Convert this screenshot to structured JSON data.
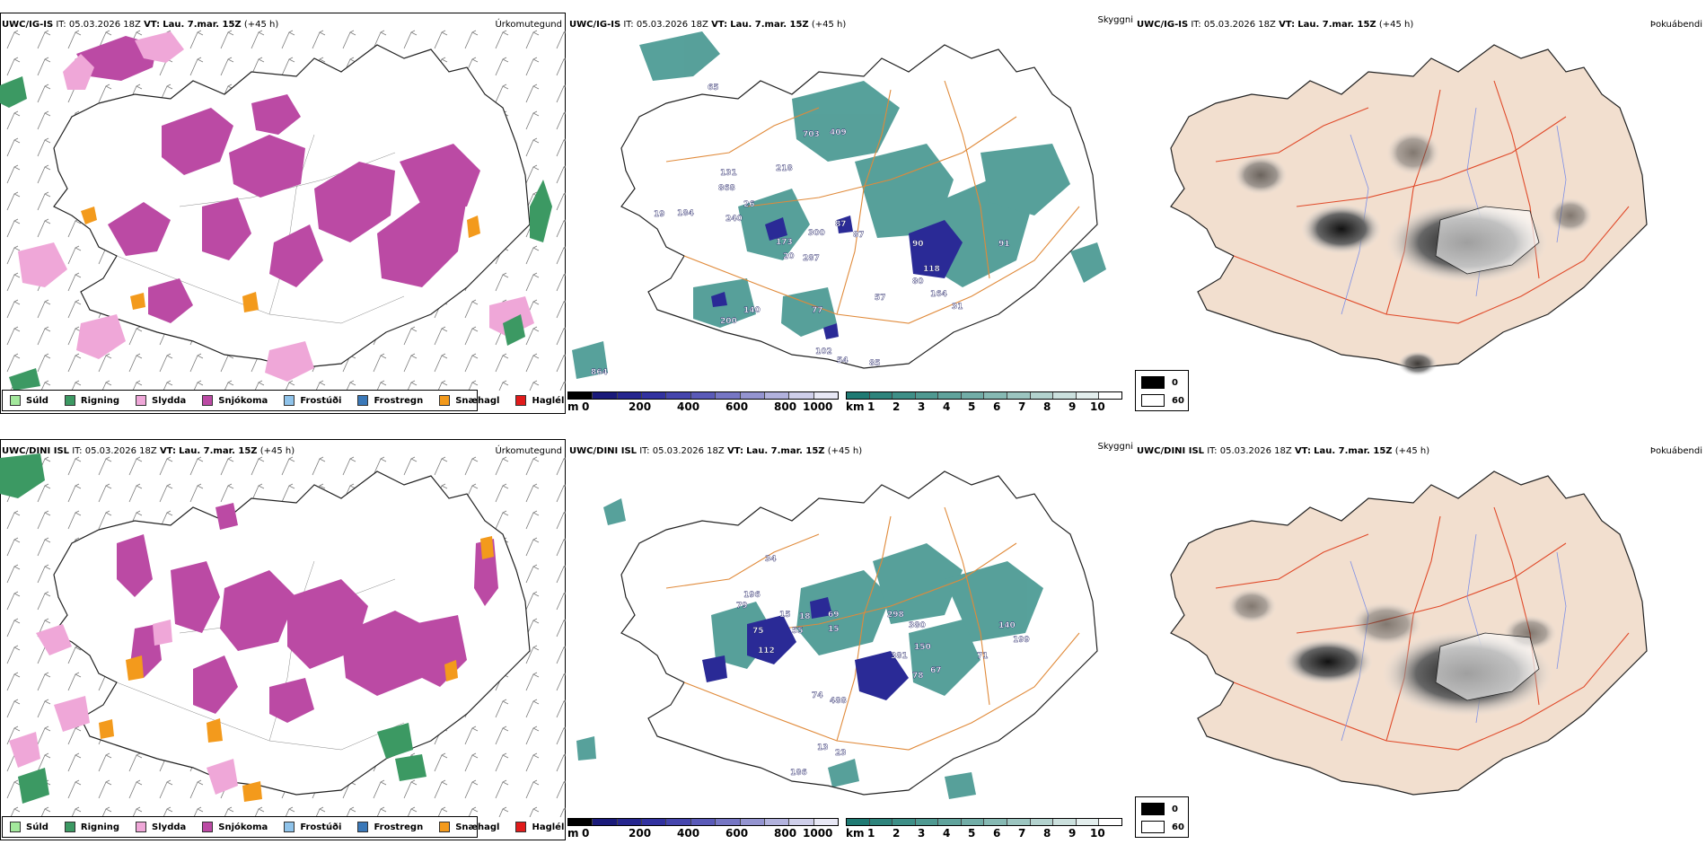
{
  "rows": [
    {
      "model": "UWC/IG-IS",
      "it_label": "IT:",
      "it_value": "05.03.2026 18Z",
      "vt_label": "VT:",
      "vt_value": "Lau. 7.mar. 15Z",
      "lead": "(+45 h)",
      "panel1_title": "Úrkomutegund",
      "panel2_title": "Skyggni",
      "panel3_title": "Þokuábendi",
      "visibility_labels": [
        "703",
        "409",
        "218",
        "131",
        "868",
        "26",
        "240",
        "300",
        "87",
        "87",
        "20",
        "287",
        "173",
        "90",
        "91",
        "118",
        "80",
        "164",
        "31",
        "57",
        "77",
        "140",
        "200",
        "102",
        "54",
        "85",
        "864",
        "65",
        "19",
        "184"
      ]
    },
    {
      "model": "UWC/DINI ISL",
      "it_label": "IT:",
      "it_value": "05.03.2026 18Z",
      "vt_label": "VT:",
      "vt_value": "Lau. 7.mar. 15Z",
      "lead": "(+45 h)",
      "panel1_title": "Úrkomutegund",
      "panel2_title": "Skyggni",
      "panel3_title": "Þokuábendi",
      "visibility_labels": [
        "34",
        "196",
        "79",
        "15",
        "18",
        "69",
        "298",
        "380",
        "140",
        "55",
        "15",
        "75",
        "112",
        "150",
        "381",
        "199",
        "71",
        "67",
        "78",
        "488",
        "74",
        "13",
        "23",
        "186"
      ]
    }
  ],
  "precip_legend": [
    {
      "label": "Súld",
      "color": "#a3e89c"
    },
    {
      "label": "Rigning",
      "color": "#3c9963"
    },
    {
      "label": "Slydda",
      "color": "#efa7d8"
    },
    {
      "label": "Snjókoma",
      "color": "#bb4aa4"
    },
    {
      "label": "Frostúði",
      "color": "#8fc3ea"
    },
    {
      "label": "Frostregn",
      "color": "#3a78b8"
    },
    {
      "label": "Snæhagl",
      "color": "#f39a1c"
    },
    {
      "label": "Haglél",
      "color": "#e11b1b"
    }
  ],
  "cloudbase_colorbar": {
    "unit": "m",
    "ticks": [
      "0",
      "200",
      "400",
      "600",
      "800",
      "1000"
    ],
    "colors": [
      "#000000",
      "#1a1a7a",
      "#26268f",
      "#3232a0",
      "#4545ad",
      "#5a5ab8",
      "#7676c4",
      "#9494d0",
      "#b2b2dd",
      "#cfcfea",
      "#e8e8f5"
    ]
  },
  "visibility_colorbar": {
    "unit": "km",
    "ticks": [
      "1",
      "2",
      "3",
      "4",
      "5",
      "6",
      "7",
      "8",
      "9",
      "10"
    ],
    "colors": [
      "#1f7a73",
      "#2e847c",
      "#3e8f87",
      "#4f9991",
      "#60a39c",
      "#72ada7",
      "#86b9b3",
      "#9cc5c0",
      "#b3d2ce",
      "#cbe0dd",
      "#e3eeed",
      "#ffffff"
    ]
  },
  "fog_legend": [
    {
      "label": "0",
      "color": "#000000"
    },
    {
      "label": "60",
      "color": "#ffffff"
    }
  ]
}
